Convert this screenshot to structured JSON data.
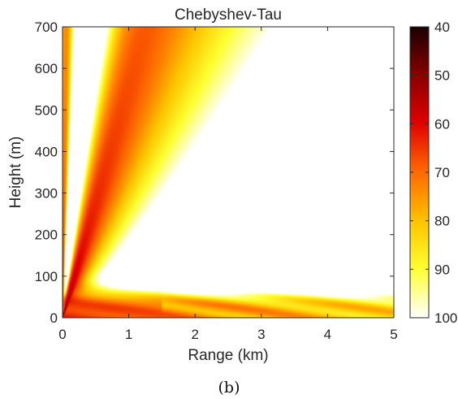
{
  "chart_data": {
    "type": "heatmap",
    "title": "Chebyshev-Tau",
    "xlabel": "Range (km)",
    "ylabel": "Height (m)",
    "caption": "(b)",
    "xlim": [
      0,
      5
    ],
    "ylim": [
      0,
      700
    ],
    "x_ticks": [
      "0",
      "1",
      "2",
      "3",
      "4",
      "5"
    ],
    "x_tick_values": [
      0,
      1,
      2,
      3,
      4,
      5
    ],
    "y_ticks": [
      "0",
      "100",
      "200",
      "300",
      "400",
      "500",
      "600",
      "700"
    ],
    "y_tick_values": [
      0,
      100,
      200,
      300,
      400,
      500,
      600,
      700
    ],
    "colorbar": {
      "min": 40,
      "max": 100,
      "ticks": [
        "40",
        "50",
        "60",
        "70",
        "80",
        "90",
        "100"
      ],
      "tick_values": [
        40,
        50,
        60,
        70,
        80,
        90,
        100
      ],
      "colormap": "hot (reversed): dark at 40, white at 100",
      "colors": [
        "#1a0000",
        "#8b0000",
        "#e00000",
        "#ff6a00",
        "#ffc400",
        "#ffff30",
        "#ffffff"
      ]
    },
    "field_description": {
      "strong_beam_angle_deg": "from origin to about (1.3 km, 700 m)",
      "minimum_value_near_origin": 40,
      "near_surface_interference_band_height_m": [
        0,
        90
      ],
      "lobe_heights_m": [
        20,
        45,
        70
      ]
    }
  }
}
